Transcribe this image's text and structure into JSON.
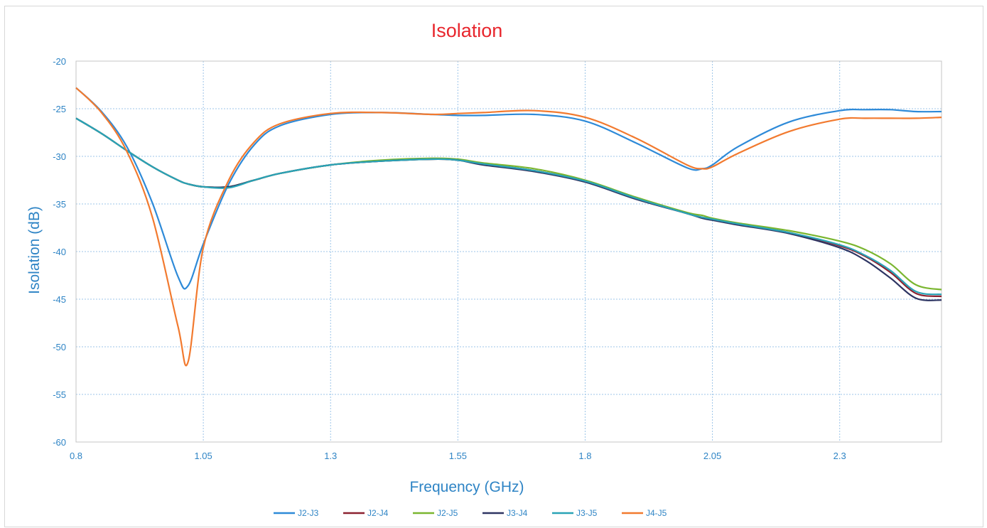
{
  "chart_data": {
    "type": "line",
    "title": "Isolation",
    "xlabel": "Frequency (GHz)",
    "ylabel": "Isolation (dB)",
    "xlim": [
      0.8,
      2.5
    ],
    "ylim": [
      -60,
      -20
    ],
    "xticks": [
      "0.8",
      "1.05",
      "1.3",
      "1.55",
      "1.8",
      "2.05",
      "2.3"
    ],
    "yticks": [
      "-20",
      "-25",
      "-30",
      "-35",
      "-40",
      "-45",
      "-50",
      "-55",
      "-60"
    ],
    "grid": true,
    "legend_position": "bottom",
    "x": [
      0.8,
      0.85,
      0.9,
      0.95,
      1.0,
      1.02,
      1.05,
      1.1,
      1.15,
      1.2,
      1.3,
      1.4,
      1.5,
      1.55,
      1.6,
      1.7,
      1.8,
      1.9,
      2.0,
      2.03,
      2.05,
      2.1,
      2.2,
      2.3,
      2.35,
      2.4,
      2.45,
      2.5
    ],
    "series": [
      {
        "name": "J2-J3",
        "color": "#2e8ad8",
        "values": [
          -22.8,
          -25.3,
          -29.0,
          -34.9,
          -42.6,
          -43.6,
          -39.2,
          -32.9,
          -28.8,
          -26.8,
          -25.6,
          -25.4,
          -25.6,
          -25.7,
          -25.7,
          -25.6,
          -26.3,
          -28.6,
          -31.2,
          -31.3,
          -30.9,
          -29.0,
          -26.4,
          -25.2,
          -25.1,
          -25.1,
          -25.3,
          -25.3
        ]
      },
      {
        "name": "J2-J4",
        "color": "#8c2130",
        "values": [
          -26.0,
          -27.6,
          -29.4,
          -31.1,
          -32.5,
          -32.9,
          -33.2,
          -33.2,
          -32.5,
          -31.8,
          -30.9,
          -30.5,
          -30.3,
          -30.4,
          -30.8,
          -31.5,
          -32.6,
          -34.4,
          -36.0,
          -36.4,
          -36.6,
          -37.1,
          -38.0,
          -39.4,
          -40.5,
          -42.2,
          -44.4,
          -44.7
        ]
      },
      {
        "name": "J2-J5",
        "color": "#7ab630",
        "values": [
          -26.0,
          -27.6,
          -29.4,
          -31.1,
          -32.5,
          -32.9,
          -33.2,
          -33.2,
          -32.5,
          -31.8,
          -30.9,
          -30.4,
          -30.2,
          -30.3,
          -30.7,
          -31.3,
          -32.5,
          -34.3,
          -35.9,
          -36.2,
          -36.5,
          -37.0,
          -37.8,
          -38.9,
          -39.8,
          -41.3,
          -43.5,
          -44.0
        ]
      },
      {
        "name": "J3-J4",
        "color": "#2d3462",
        "values": [
          -26.0,
          -27.6,
          -29.4,
          -31.1,
          -32.5,
          -32.9,
          -33.2,
          -33.2,
          -32.5,
          -31.8,
          -30.9,
          -30.5,
          -30.3,
          -30.4,
          -30.9,
          -31.6,
          -32.7,
          -34.5,
          -36.0,
          -36.5,
          -36.7,
          -37.2,
          -38.1,
          -39.6,
          -40.9,
          -42.8,
          -44.9,
          -45.1
        ]
      },
      {
        "name": "J3-J5",
        "color": "#29a3b6",
        "values": [
          -26.0,
          -27.6,
          -29.4,
          -31.1,
          -32.5,
          -32.9,
          -33.2,
          -33.3,
          -32.5,
          -31.8,
          -30.9,
          -30.5,
          -30.3,
          -30.4,
          -30.8,
          -31.5,
          -32.6,
          -34.4,
          -36.0,
          -36.4,
          -36.6,
          -37.1,
          -38.0,
          -39.3,
          -40.4,
          -42.0,
          -44.2,
          -44.5
        ]
      },
      {
        "name": "J4-J5",
        "color": "#f27a2f",
        "values": [
          -22.8,
          -25.4,
          -29.5,
          -36.4,
          -47.8,
          -51.6,
          -39.6,
          -32.5,
          -28.5,
          -26.6,
          -25.5,
          -25.4,
          -25.6,
          -25.5,
          -25.4,
          -25.2,
          -25.9,
          -28.1,
          -30.9,
          -31.3,
          -31.1,
          -29.7,
          -27.4,
          -26.1,
          -26.0,
          -26.0,
          -26.0,
          -25.9
        ]
      }
    ]
  }
}
